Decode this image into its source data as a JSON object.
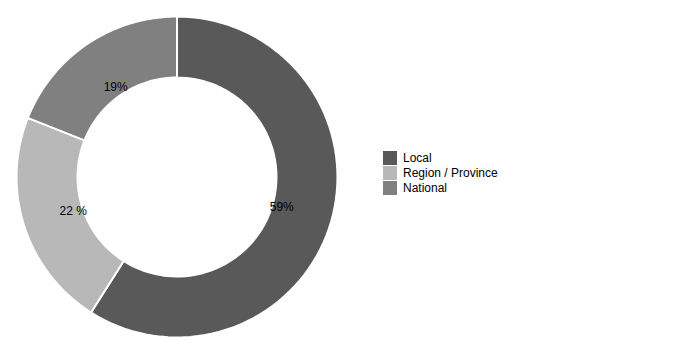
{
  "chart_data": {
    "type": "donut",
    "categories": [
      "Local",
      "Region / Province",
      "National"
    ],
    "values": [
      59,
      22,
      19
    ],
    "value_labels": [
      "59%",
      "22 %",
      "19%"
    ],
    "colors": [
      "#595959",
      "#b8b8b8",
      "#808080"
    ],
    "data_labels": true,
    "legend": "right"
  }
}
